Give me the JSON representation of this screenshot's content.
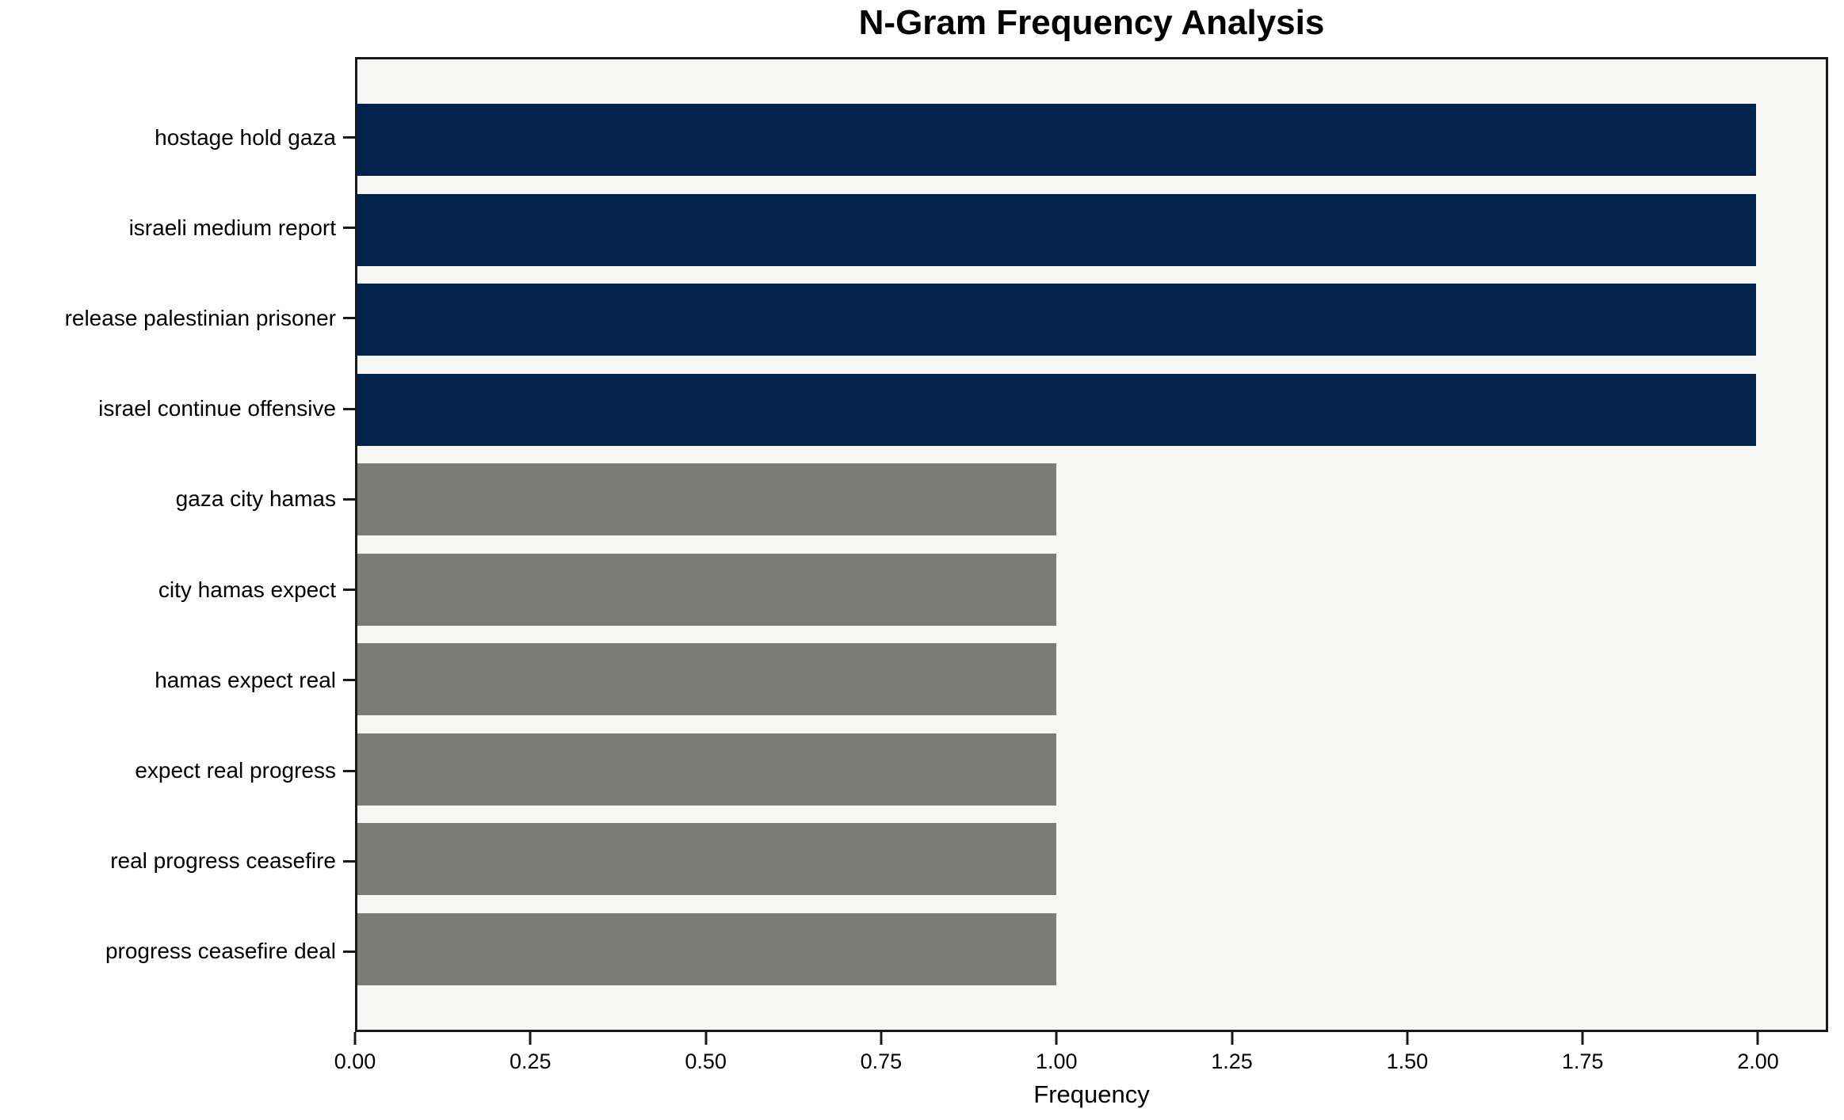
{
  "chart_data": {
    "type": "bar",
    "orientation": "horizontal",
    "title": "N-Gram Frequency Analysis",
    "xlabel": "Frequency",
    "ylabel": "",
    "categories": [
      "hostage hold gaza",
      "israeli medium report",
      "release palestinian prisoner",
      "israel continue offensive",
      "gaza city hamas",
      "city hamas expect",
      "hamas expect real",
      "expect real progress",
      "real progress ceasefire",
      "progress ceasefire deal"
    ],
    "values": [
      2,
      2,
      2,
      2,
      1,
      1,
      1,
      1,
      1,
      1
    ],
    "bar_colors": [
      "#02234c",
      "#02234c",
      "#02234c",
      "#02234c",
      "#7b7b78",
      "#7b7b78",
      "#7b7b78",
      "#7b7b78",
      "#7b7b78",
      "#7b7b78"
    ],
    "xlim": [
      0,
      2.1
    ],
    "xticks": [
      0.0,
      0.25,
      0.5,
      0.75,
      1.0,
      1.25,
      1.5,
      1.75,
      2.0
    ],
    "xtick_labels": [
      "0.00",
      "0.25",
      "0.50",
      "0.75",
      "1.00",
      "1.25",
      "1.50",
      "1.75",
      "2.00"
    ],
    "grid": false,
    "legend_position": "none",
    "colors": {
      "navy": "#02234c",
      "gray": "#7b7b78",
      "plot_background": "#f7f7f5",
      "frame": "#1a1a1a"
    }
  }
}
